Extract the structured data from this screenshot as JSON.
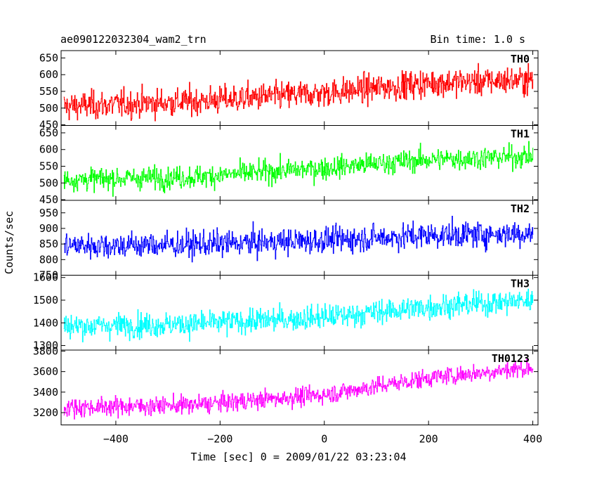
{
  "header": {
    "observation_id": "ae090122032304_wam2_trn",
    "bin_time": "Bin time: 1.0 s"
  },
  "chart_data": {
    "type": "line",
    "title": "ae090122032304_wam2_trn",
    "xlabel": "Time [sec] 0 = 2009/01/22 03:23:04",
    "ylabel": "Counts/sec",
    "xlim": [
      -505,
      410
    ],
    "x_ticks": [
      -400,
      -200,
      0,
      200,
      400
    ],
    "x_tick_labels": [
      "−400",
      "−200",
      "0",
      "200",
      "400"
    ],
    "grid": false,
    "panels": [
      {
        "name": "TH0",
        "color": "#ff0000",
        "ylim": [
          448,
          672
        ],
        "y_ticks": [
          450,
          500,
          550,
          600,
          650
        ],
        "x_start": -500,
        "x_end": 400,
        "step": 1,
        "trend": [
          [
            -500,
            505
          ],
          [
            -250,
            520
          ],
          [
            0,
            545
          ],
          [
            200,
            575
          ],
          [
            400,
            585
          ]
        ],
        "noise_sigma": 35
      },
      {
        "name": "TH1",
        "color": "#00ff00",
        "ylim": [
          448,
          672
        ],
        "y_ticks": [
          450,
          500,
          550,
          600,
          650
        ],
        "x_start": -500,
        "x_end": 400,
        "step": 1,
        "trend": [
          [
            -500,
            510
          ],
          [
            -250,
            518
          ],
          [
            0,
            545
          ],
          [
            200,
            570
          ],
          [
            400,
            580
          ]
        ],
        "noise_sigma": 28
      },
      {
        "name": "TH2",
        "color": "#0000ff",
        "ylim": [
          750,
          990
        ],
        "y_ticks": [
          750,
          800,
          850,
          900,
          950
        ],
        "x_start": -500,
        "x_end": 400,
        "step": 1,
        "trend": [
          [
            -500,
            845
          ],
          [
            -250,
            848
          ],
          [
            0,
            862
          ],
          [
            200,
            878
          ],
          [
            400,
            885
          ]
        ],
        "noise_sigma": 35
      },
      {
        "name": "TH3",
        "color": "#00ffff",
        "ylim": [
          1280,
          1610
        ],
        "y_ticks": [
          1300,
          1400,
          1500,
          1600
        ],
        "x_start": -500,
        "x_end": 400,
        "step": 1,
        "trend": [
          [
            -500,
            1385
          ],
          [
            -250,
            1395
          ],
          [
            0,
            1425
          ],
          [
            200,
            1470
          ],
          [
            400,
            1500
          ]
        ],
        "noise_sigma": 45
      },
      {
        "name": "TH0123",
        "color": "#ff00ff",
        "ylim": [
          3080,
          3810
        ],
        "y_ticks": [
          3200,
          3400,
          3600,
          3800
        ],
        "x_start": -500,
        "x_end": 400,
        "step": 1,
        "trend": [
          [
            -500,
            3250
          ],
          [
            -250,
            3275
          ],
          [
            0,
            3375
          ],
          [
            200,
            3540
          ],
          [
            400,
            3640
          ]
        ],
        "noise_sigma": 75
      }
    ]
  }
}
